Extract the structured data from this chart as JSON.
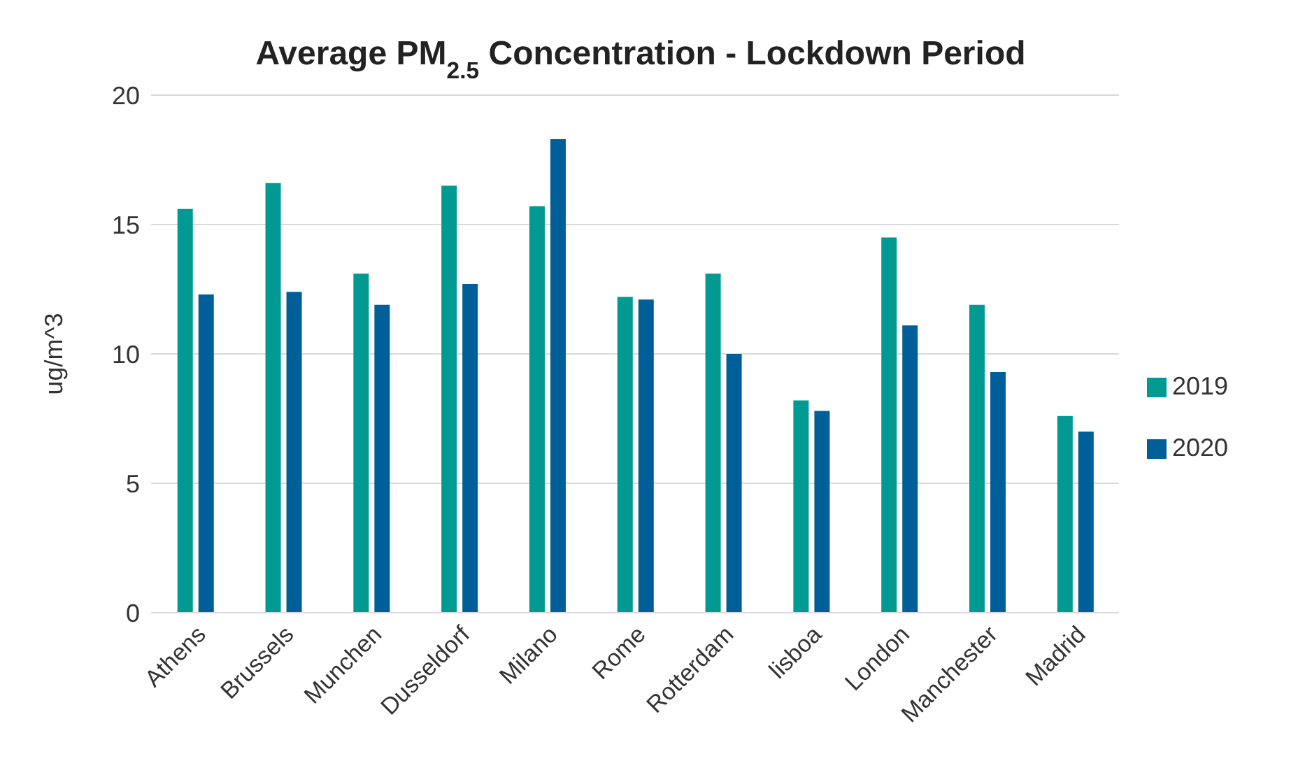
{
  "chart_data": {
    "type": "bar",
    "title": "Average PM$_{2.5}$ Concentration - Lockdown Period",
    "ylabel": "ug/m^3",
    "categories": [
      "Athens",
      "Brussels",
      "Munchen",
      "Dusseldorf",
      "Milano",
      "Rome",
      "Rotterdam",
      "lisboa",
      "London",
      "Manchester",
      "Madrid"
    ],
    "series": [
      {
        "name": "2019",
        "color": "#009a93",
        "values": [
          15.6,
          16.6,
          13.1,
          16.5,
          15.7,
          12.2,
          13.1,
          8.2,
          14.5,
          11.9,
          7.6
        ]
      },
      {
        "name": "2020",
        "color": "#005f99",
        "values": [
          12.3,
          12.4,
          11.9,
          12.7,
          18.3,
          12.1,
          10.0,
          7.8,
          11.1,
          9.3,
          7.0
        ]
      }
    ],
    "ylim": [
      0,
      20
    ],
    "yticks": [
      0,
      5,
      10,
      15,
      20
    ],
    "grid": "y",
    "legend": "right"
  }
}
